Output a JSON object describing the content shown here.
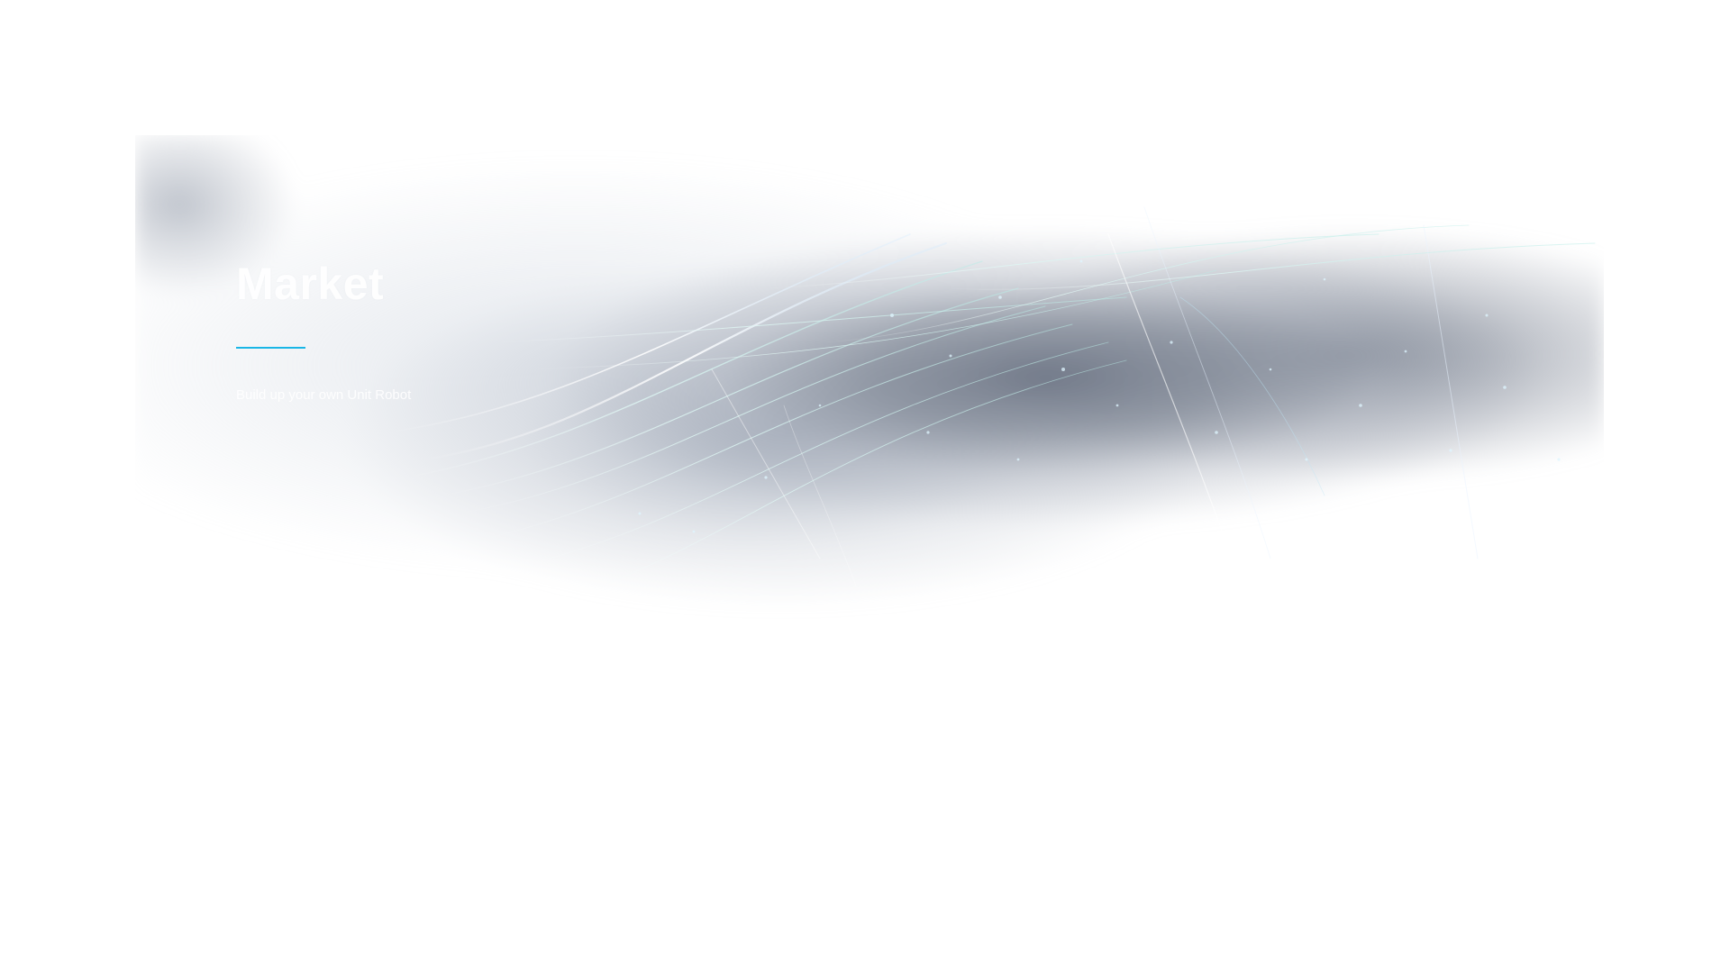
{
  "hero": {
    "title": "Market",
    "subtitle": "Build up your own Unit Robot",
    "accent_color": "#19b6e6",
    "background_image": "light-streaks-abstract-image"
  }
}
